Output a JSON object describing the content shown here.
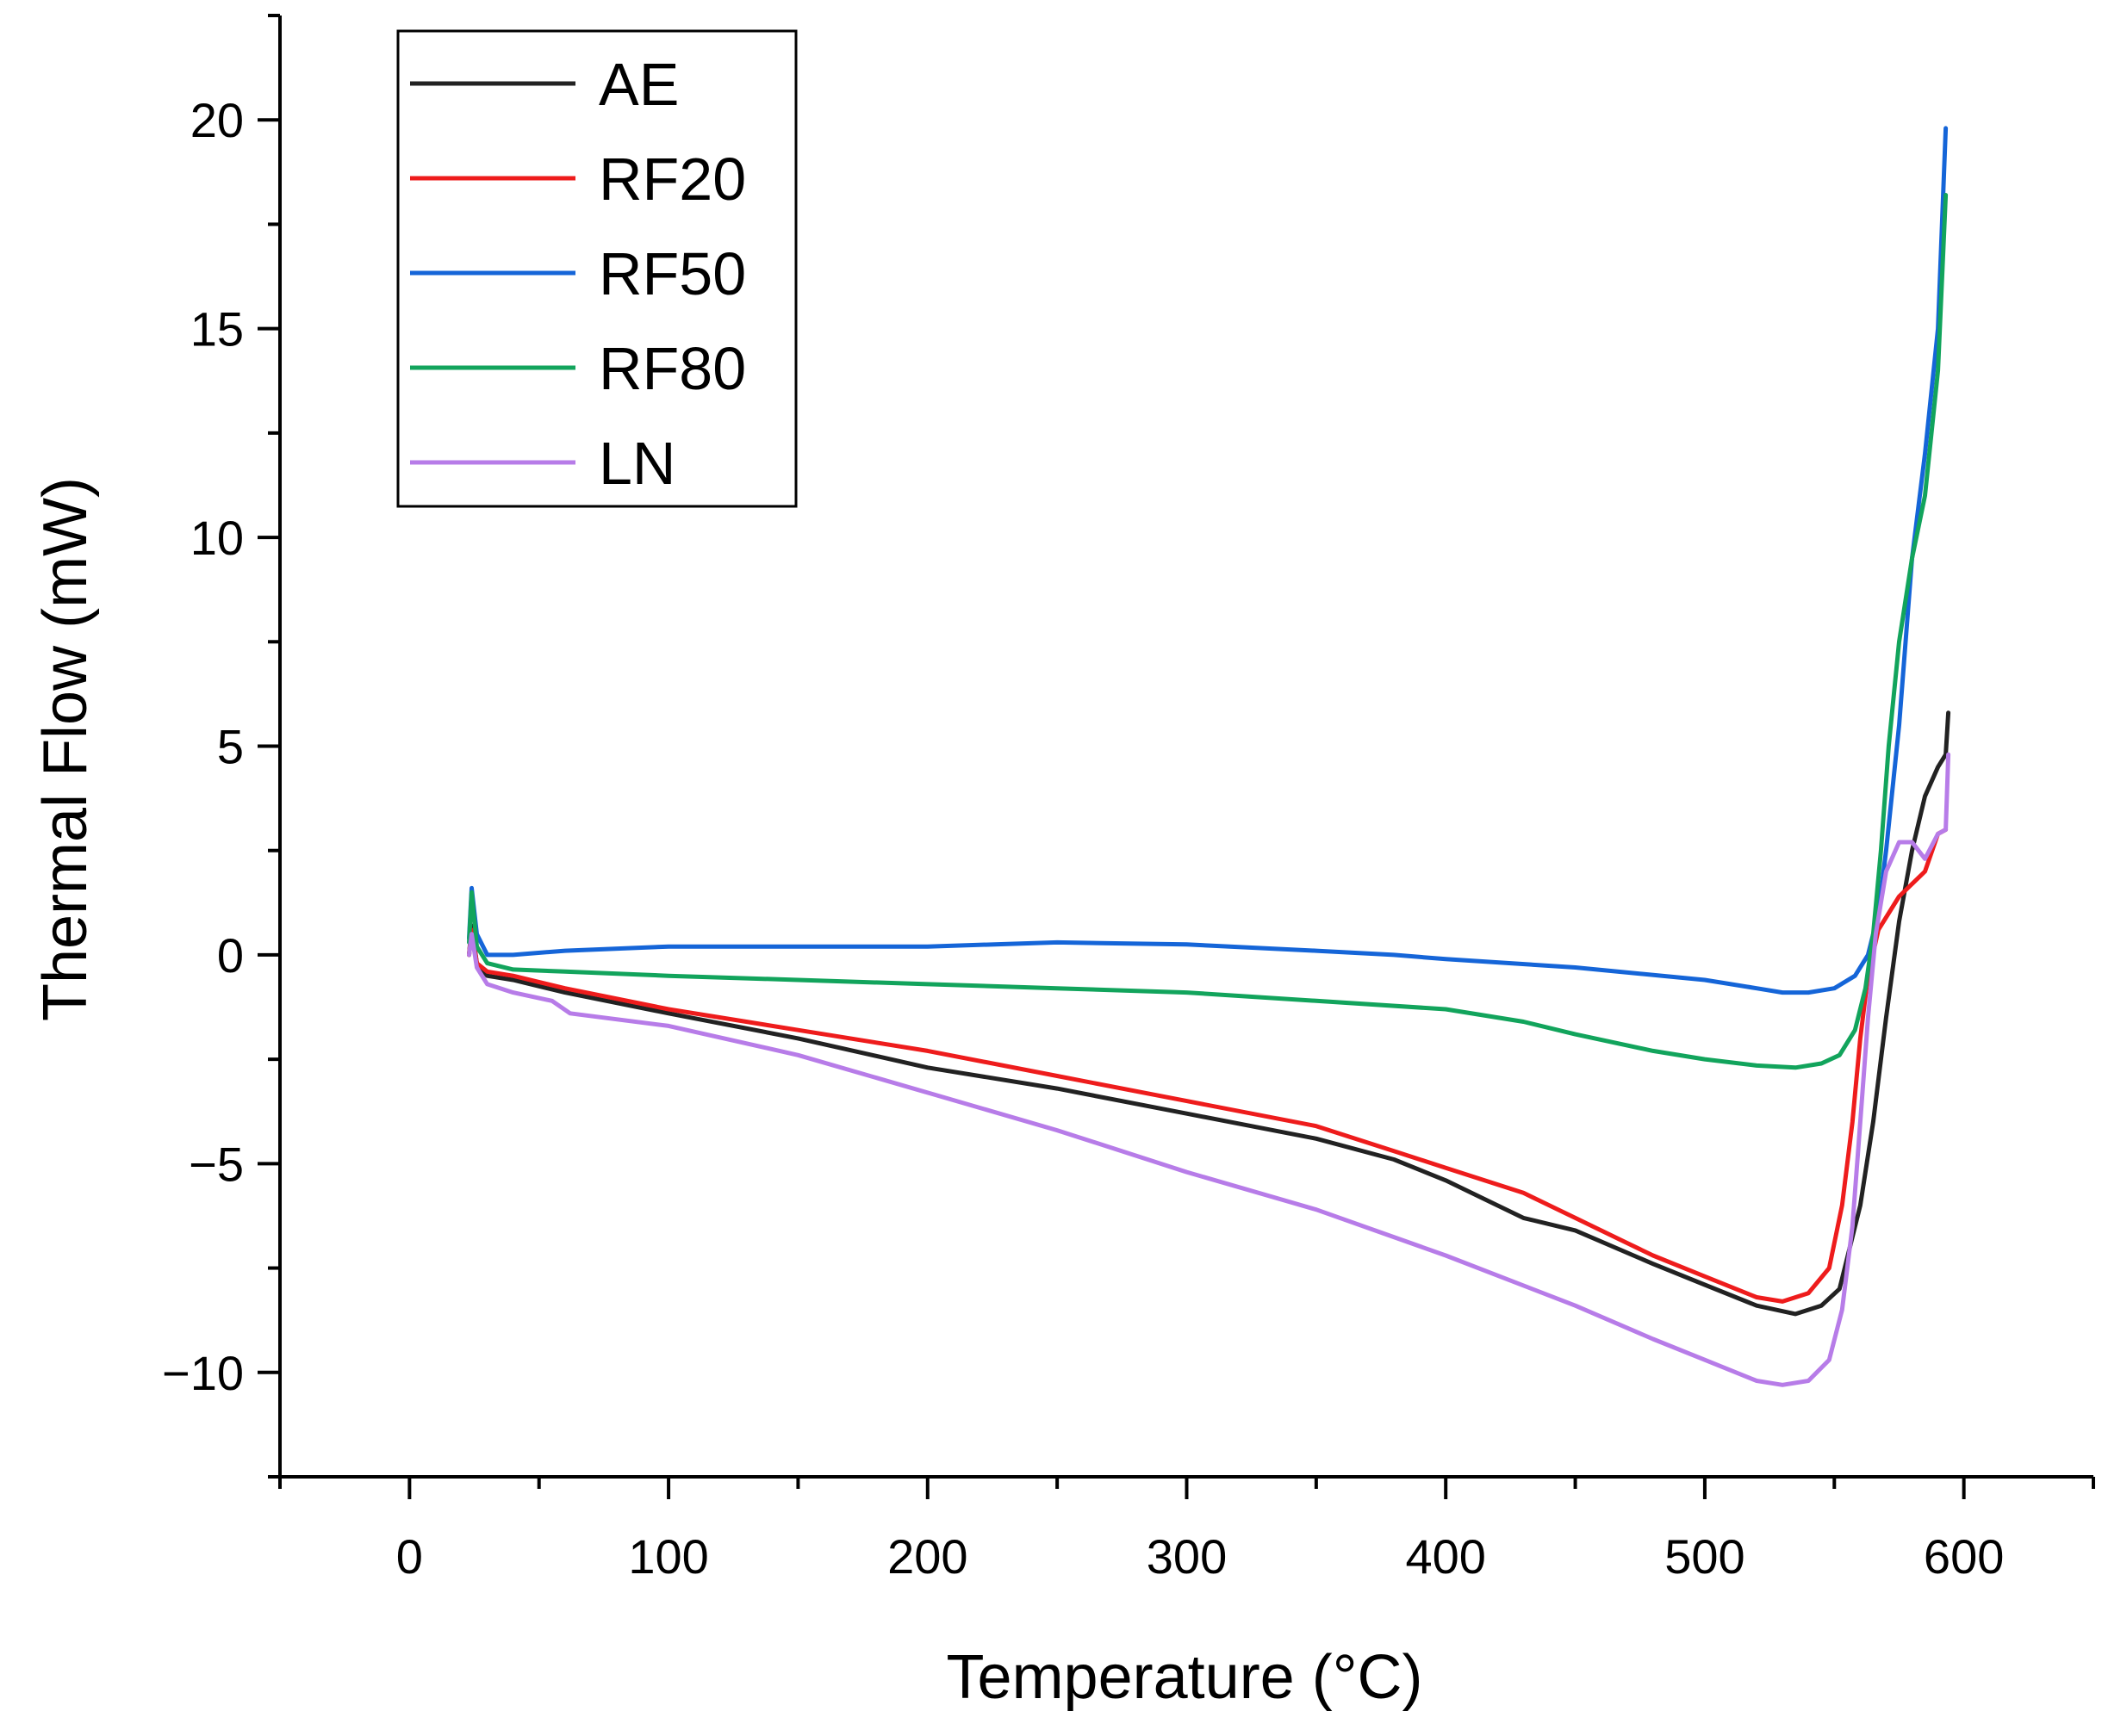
{
  "chart_data": {
    "type": "line",
    "title": "",
    "xlabel": "Temperature (°C)",
    "ylabel": "Thermal Flow (mW)",
    "xlim": [
      -50,
      650
    ],
    "ylim": [
      -12.5,
      22.5
    ],
    "x_ticks": [
      0,
      100,
      200,
      300,
      400,
      500,
      600
    ],
    "x_tick_labels": [
      "0",
      "100",
      "200",
      "300",
      "400",
      "500",
      "600"
    ],
    "y_ticks": [
      -10,
      -5,
      0,
      5,
      10,
      15,
      20
    ],
    "y_tick_labels": [
      "−10",
      "−5",
      "0",
      "5",
      "10",
      "15",
      "20"
    ],
    "grid": false,
    "legend_position": "top-left",
    "series": [
      {
        "name": "AE",
        "color": "#222222",
        "points": [
          [
            23,
            0.0
          ],
          [
            24,
            0.7
          ],
          [
            26,
            -0.2
          ],
          [
            30,
            -0.5
          ],
          [
            40,
            -0.6
          ],
          [
            60,
            -0.9
          ],
          [
            100,
            -1.4
          ],
          [
            150,
            -2.0
          ],
          [
            200,
            -2.7
          ],
          [
            250,
            -3.2
          ],
          [
            300,
            -3.8
          ],
          [
            350,
            -4.4
          ],
          [
            380,
            -4.9
          ],
          [
            400,
            -5.4
          ],
          [
            430,
            -6.3
          ],
          [
            450,
            -6.6
          ],
          [
            480,
            -7.4
          ],
          [
            500,
            -7.9
          ],
          [
            520,
            -8.4
          ],
          [
            535,
            -8.6
          ],
          [
            545,
            -8.4
          ],
          [
            552,
            -8.0
          ],
          [
            560,
            -6.0
          ],
          [
            565,
            -4.0
          ],
          [
            570,
            -1.5
          ],
          [
            575,
            0.8
          ],
          [
            580,
            2.5
          ],
          [
            585,
            3.8
          ],
          [
            590,
            4.5
          ],
          [
            593,
            4.8
          ],
          [
            594,
            5.8
          ]
        ]
      },
      {
        "name": "RF20",
        "color": "#ee1c1c",
        "points": [
          [
            23,
            0.0
          ],
          [
            24,
            0.6
          ],
          [
            26,
            -0.2
          ],
          [
            30,
            -0.4
          ],
          [
            40,
            -0.5
          ],
          [
            60,
            -0.8
          ],
          [
            100,
            -1.3
          ],
          [
            150,
            -1.8
          ],
          [
            200,
            -2.3
          ],
          [
            250,
            -2.9
          ],
          [
            300,
            -3.5
          ],
          [
            350,
            -4.1
          ],
          [
            380,
            -4.7
          ],
          [
            400,
            -5.1
          ],
          [
            430,
            -5.7
          ],
          [
            450,
            -6.3
          ],
          [
            470,
            -6.9
          ],
          [
            480,
            -7.2
          ],
          [
            500,
            -7.7
          ],
          [
            520,
            -8.2
          ],
          [
            530,
            -8.3
          ],
          [
            540,
            -8.1
          ],
          [
            548,
            -7.5
          ],
          [
            553,
            -6.0
          ],
          [
            557,
            -4.0
          ],
          [
            560,
            -2.0
          ],
          [
            563,
            -0.5
          ],
          [
            567,
            0.6
          ],
          [
            575,
            1.4
          ],
          [
            585,
            2.0
          ],
          [
            590,
            2.9
          ],
          [
            593,
            3.0
          ]
        ]
      },
      {
        "name": "RF50",
        "color": "#1565d8",
        "points": [
          [
            23,
            0.4
          ],
          [
            24,
            1.6
          ],
          [
            26,
            0.5
          ],
          [
            30,
            0.0
          ],
          [
            40,
            0.0
          ],
          [
            60,
            0.1
          ],
          [
            100,
            0.2
          ],
          [
            150,
            0.2
          ],
          [
            200,
            0.2
          ],
          [
            250,
            0.3
          ],
          [
            300,
            0.25
          ],
          [
            350,
            0.1
          ],
          [
            380,
            0.0
          ],
          [
            400,
            -0.1
          ],
          [
            450,
            -0.3
          ],
          [
            500,
            -0.6
          ],
          [
            520,
            -0.8
          ],
          [
            530,
            -0.9
          ],
          [
            540,
            -0.9
          ],
          [
            550,
            -0.8
          ],
          [
            558,
            -0.5
          ],
          [
            563,
            0.0
          ],
          [
            567,
            1.0
          ],
          [
            570,
            2.5
          ],
          [
            575,
            5.5
          ],
          [
            580,
            9.5
          ],
          [
            585,
            12.0
          ],
          [
            590,
            15.0
          ],
          [
            593,
            19.8
          ]
        ]
      },
      {
        "name": "RF80",
        "color": "#12a45c",
        "points": [
          [
            23,
            0.3
          ],
          [
            24,
            1.5
          ],
          [
            26,
            0.2
          ],
          [
            30,
            -0.2
          ],
          [
            40,
            -0.35
          ],
          [
            60,
            -0.4
          ],
          [
            100,
            -0.5
          ],
          [
            150,
            -0.6
          ],
          [
            200,
            -0.7
          ],
          [
            250,
            -0.8
          ],
          [
            300,
            -0.9
          ],
          [
            350,
            -1.1
          ],
          [
            400,
            -1.3
          ],
          [
            430,
            -1.6
          ],
          [
            450,
            -1.9
          ],
          [
            480,
            -2.3
          ],
          [
            500,
            -2.5
          ],
          [
            520,
            -2.65
          ],
          [
            535,
            -2.7
          ],
          [
            545,
            -2.6
          ],
          [
            552,
            -2.4
          ],
          [
            558,
            -1.8
          ],
          [
            562,
            -0.8
          ],
          [
            565,
            0.5
          ],
          [
            568,
            2.5
          ],
          [
            571,
            5.0
          ],
          [
            575,
            7.5
          ],
          [
            580,
            9.5
          ],
          [
            585,
            11.0
          ],
          [
            590,
            14.0
          ],
          [
            593,
            18.2
          ]
        ]
      },
      {
        "name": "LN",
        "color": "#b77ce8",
        "points": [
          [
            23,
            0.0
          ],
          [
            24,
            0.5
          ],
          [
            26,
            -0.3
          ],
          [
            30,
            -0.7
          ],
          [
            40,
            -0.9
          ],
          [
            55,
            -1.1
          ],
          [
            62,
            -1.4
          ],
          [
            100,
            -1.7
          ],
          [
            150,
            -2.4
          ],
          [
            200,
            -3.3
          ],
          [
            250,
            -4.2
          ],
          [
            300,
            -5.2
          ],
          [
            350,
            -6.1
          ],
          [
            400,
            -7.2
          ],
          [
            450,
            -8.4
          ],
          [
            480,
            -9.2
          ],
          [
            500,
            -9.7
          ],
          [
            520,
            -10.2
          ],
          [
            530,
            -10.3
          ],
          [
            540,
            -10.2
          ],
          [
            548,
            -9.7
          ],
          [
            553,
            -8.5
          ],
          [
            557,
            -6.5
          ],
          [
            560,
            -4.0
          ],
          [
            563,
            -1.5
          ],
          [
            566,
            0.5
          ],
          [
            570,
            2.0
          ],
          [
            575,
            2.7
          ],
          [
            580,
            2.7
          ],
          [
            585,
            2.3
          ],
          [
            590,
            2.9
          ],
          [
            593,
            3.0
          ],
          [
            594,
            4.8
          ]
        ]
      }
    ]
  }
}
